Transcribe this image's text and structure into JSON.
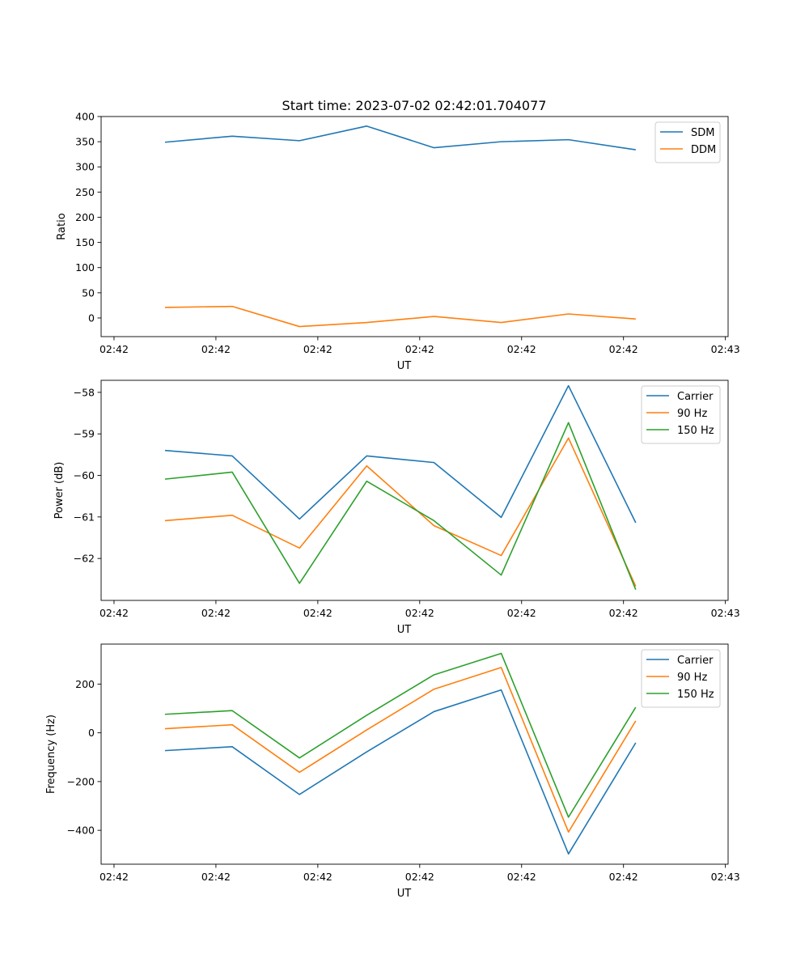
{
  "figure_title": "Start time: 2023-07-02 02:42:01.704077",
  "colors": {
    "blue": "#1f77b4",
    "orange": "#ff7f0e",
    "green": "#2ca02c"
  },
  "chart_data": [
    {
      "type": "line",
      "title": "Start time: 2023-07-02 02:42:01.704077",
      "xlabel": "UT",
      "ylabel": "Ratio",
      "xlim": [
        -0.19,
        9.04
      ],
      "ylim": [
        -37,
        400
      ],
      "x_tick_positions": [
        0,
        1.5,
        3,
        4.5,
        6,
        7.5,
        9
      ],
      "x_tick_labels": [
        "02:42",
        "02:42",
        "02:42",
        "02:42",
        "02:42",
        "02:42",
        "02:43"
      ],
      "y_ticks": [
        0,
        50,
        100,
        150,
        200,
        250,
        300,
        350,
        400
      ],
      "y_tick_labels": [
        "0",
        "50",
        "100",
        "150",
        "200",
        "250",
        "300",
        "350",
        "400"
      ],
      "legend_position": "top-right",
      "grid": false,
      "x": [
        0.75,
        1.74,
        2.73,
        3.72,
        4.71,
        5.7,
        6.69,
        7.68
      ],
      "series": [
        {
          "name": "SDM",
          "color": "#1f77b4",
          "values": [
            349,
            361,
            352,
            381,
            338,
            350,
            354,
            334
          ]
        },
        {
          "name": "DDM",
          "color": "#ff7f0e",
          "values": [
            21,
            23,
            -17,
            -9,
            3,
            -9,
            8,
            -2
          ]
        }
      ]
    },
    {
      "type": "line",
      "title": "",
      "xlabel": "UT",
      "ylabel": "Power (dB)",
      "xlim": [
        -0.19,
        9.04
      ],
      "ylim": [
        -63.01,
        -57.71
      ],
      "x_tick_positions": [
        0,
        1.5,
        3,
        4.5,
        6,
        7.5,
        9
      ],
      "x_tick_labels": [
        "02:42",
        "02:42",
        "02:42",
        "02:42",
        "02:42",
        "02:42",
        "02:43"
      ],
      "y_ticks": [
        -62,
        -61,
        -60,
        -59,
        -58
      ],
      "y_tick_labels": [
        "−62",
        "−61",
        "−60",
        "−59",
        "−58"
      ],
      "legend_position": "top-right",
      "grid": false,
      "x": [
        0.75,
        1.74,
        2.73,
        3.72,
        4.71,
        5.7,
        6.69,
        7.68
      ],
      "series": [
        {
          "name": "Carrier",
          "color": "#1f77b4",
          "values": [
            -59.4,
            -59.53,
            -61.05,
            -59.53,
            -59.69,
            -61.01,
            -57.84,
            -61.14
          ]
        },
        {
          "name": "90 Hz",
          "color": "#ff7f0e",
          "values": [
            -61.09,
            -60.96,
            -61.75,
            -59.77,
            -61.21,
            -61.93,
            -59.1,
            -62.67
          ]
        },
        {
          "name": "150 Hz",
          "color": "#2ca02c",
          "values": [
            -60.09,
            -59.92,
            -62.6,
            -60.14,
            -61.09,
            -62.4,
            -58.73,
            -62.75
          ]
        }
      ]
    },
    {
      "type": "line",
      "title": "",
      "xlabel": "UT",
      "ylabel": "Frequency (Hz)",
      "xlim": [
        -0.19,
        9.04
      ],
      "ylim": [
        -539,
        364
      ],
      "x_tick_positions": [
        0,
        1.5,
        3,
        4.5,
        6,
        7.5,
        9
      ],
      "x_tick_labels": [
        "02:42",
        "02:42",
        "02:42",
        "02:42",
        "02:42",
        "02:42",
        "02:43"
      ],
      "y_ticks": [
        -400,
        -200,
        0,
        200
      ],
      "y_tick_labels": [
        "−400",
        "−200",
        "0",
        "200"
      ],
      "legend_position": "top-right",
      "grid": false,
      "x": [
        0.75,
        1.74,
        2.73,
        3.72,
        4.71,
        5.7,
        6.69,
        7.68
      ],
      "series": [
        {
          "name": "Carrier",
          "color": "#1f77b4",
          "values": [
            -73,
            -57,
            -253,
            -78,
            87,
            176,
            -497,
            -41
          ]
        },
        {
          "name": "90 Hz",
          "color": "#ff7f0e",
          "values": [
            17,
            33,
            -162,
            12,
            179,
            268,
            -407,
            49
          ]
        },
        {
          "name": "150 Hz",
          "color": "#2ca02c",
          "values": [
            76,
            91,
            -103,
            72,
            238,
            326,
            -346,
            105
          ]
        }
      ]
    }
  ]
}
